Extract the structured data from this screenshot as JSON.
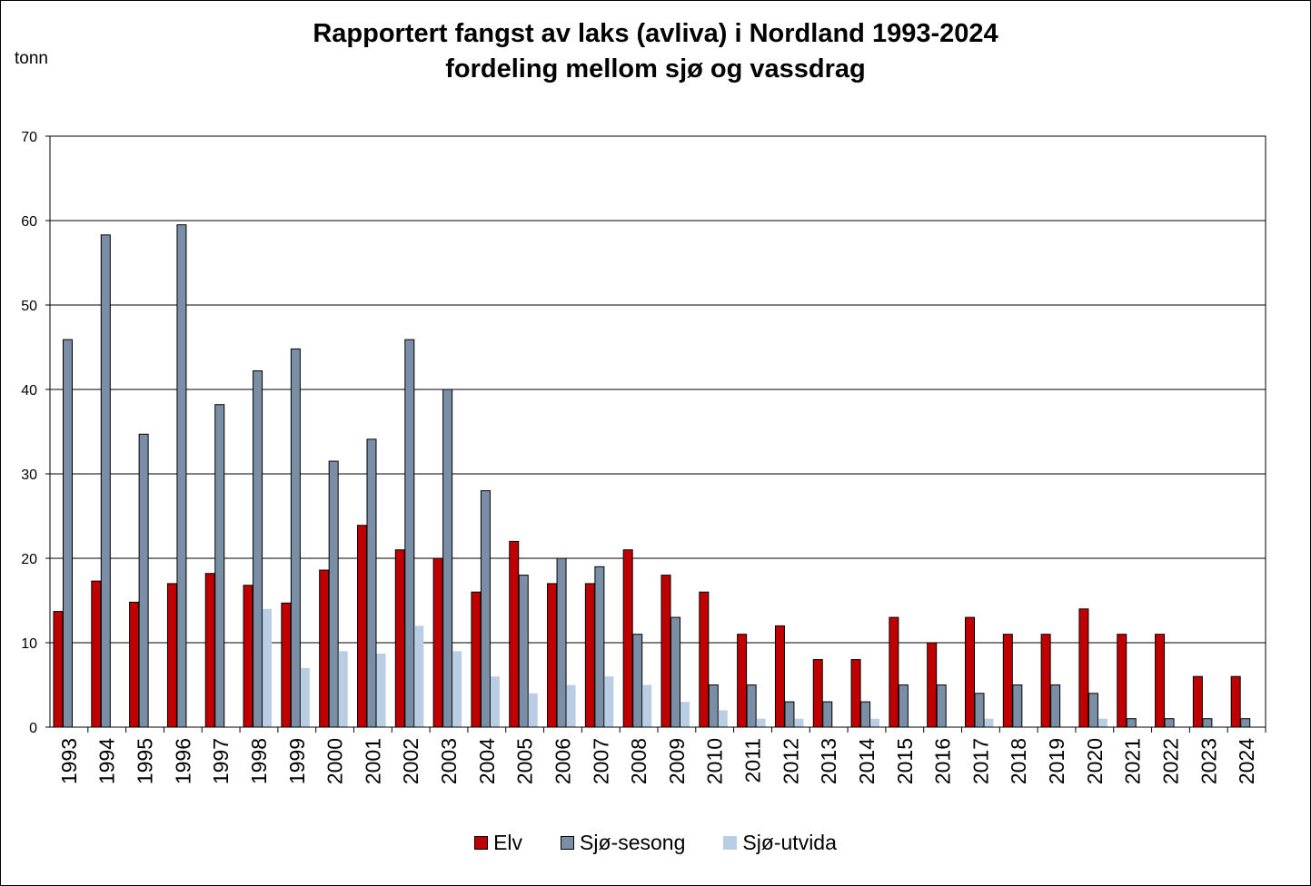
{
  "chart_data": {
    "type": "bar",
    "title": "Rapportert fangst av laks (avliva) i Nordland 1993-2024",
    "subtitle": "fordeling mellom sjø og vassdrag",
    "ylabel": "tonn",
    "xlabel": "",
    "ylim": [
      0,
      70
    ],
    "yticks": [
      "0",
      "10",
      "20",
      "30",
      "40",
      "50",
      "60",
      "70"
    ],
    "grid": true,
    "legend_position": "bottom",
    "categories": [
      "1993",
      "1994",
      "1995",
      "1996",
      "1997",
      "1998",
      "1999",
      "2000",
      "2001",
      "2002",
      "2003",
      "2004",
      "2005",
      "2006",
      "2007",
      "2008",
      "2009",
      "2010",
      "2011",
      "2012",
      "2013",
      "2014",
      "2015",
      "2016",
      "2017",
      "2018",
      "2019",
      "2020",
      "2021",
      "2022",
      "2023",
      "2024"
    ],
    "series": [
      {
        "name": "Elv",
        "color": "#c00000",
        "values": [
          13.7,
          17.3,
          14.8,
          17.0,
          18.2,
          16.8,
          14.7,
          18.6,
          23.9,
          21.0,
          20.0,
          16.0,
          22.0,
          17.0,
          17.0,
          21.0,
          18.0,
          16.0,
          11.0,
          12.0,
          8.0,
          8.0,
          13.0,
          10.0,
          13.0,
          11.0,
          11.0,
          14.0,
          11.0,
          11.0,
          6.0,
          6.0
        ]
      },
      {
        "name": "Sjø-sesong",
        "color": "#7a8fa6",
        "values": [
          45.9,
          58.3,
          34.7,
          59.5,
          38.2,
          42.2,
          44.8,
          31.5,
          34.1,
          45.9,
          40.0,
          28.0,
          18.0,
          20.0,
          19.0,
          11.0,
          13.0,
          5.0,
          5.0,
          3.0,
          3.0,
          3.0,
          5.0,
          5.0,
          4.0,
          5.0,
          5.0,
          4.0,
          1.0,
          1.0,
          1.0,
          1.0
        ]
      },
      {
        "name": "Sjø-utvida",
        "color": "#b9cde5",
        "values": [
          0,
          0,
          0,
          0,
          0,
          14.0,
          7.0,
          9.0,
          8.7,
          12.0,
          9.0,
          6.0,
          4.0,
          5.0,
          6.0,
          5.0,
          3.0,
          2.0,
          1.0,
          1.0,
          0,
          1.0,
          0,
          0,
          1.0,
          0,
          0,
          1.0,
          0,
          0,
          0,
          0
        ]
      }
    ]
  }
}
